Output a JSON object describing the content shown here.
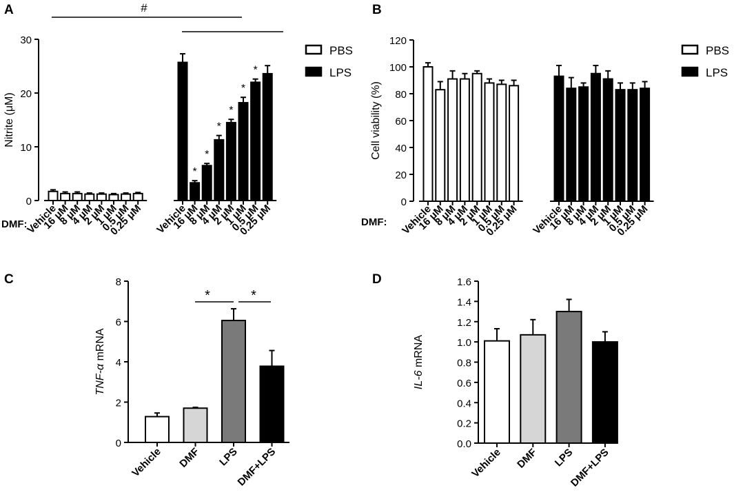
{
  "colors": {
    "pbs_fill": "#ffffff",
    "lps_fill": "#000000",
    "vehicle_fill": "#ffffff",
    "dmf_fill": "#d6d6d6",
    "lps_gray_fill": "#7a7a7a",
    "dmflps_fill": "#000000",
    "axis": "#000000"
  },
  "chart_data": [
    {
      "panel": "A",
      "type": "bar",
      "ylabel": "Nitrite (μM)",
      "ylim": [
        0,
        30
      ],
      "yticks": [
        "0",
        "10",
        "20",
        "30"
      ],
      "group_label": "DMF:",
      "categories": [
        "Vehicle",
        "16 μM",
        "8 μM",
        "4 μM",
        "2 μM",
        "1 μM",
        "0.5 μM",
        "0.25 μM"
      ],
      "legend": [
        "PBS",
        "LPS"
      ],
      "series": [
        {
          "name": "PBS",
          "values": [
            1.7,
            1.3,
            1.3,
            1.2,
            1.2,
            1.1,
            1.2,
            1.3
          ],
          "errors": [
            0.3,
            0.3,
            0.3,
            0.2,
            0.2,
            0.2,
            0.2,
            0.2
          ]
        },
        {
          "name": "LPS",
          "values": [
            25.7,
            3.3,
            6.5,
            11.3,
            14.5,
            18.2,
            22.0,
            23.6
          ],
          "errors": [
            1.6,
            0.4,
            0.4,
            0.8,
            0.6,
            1.0,
            0.6,
            1.5
          ]
        }
      ],
      "star_marks": [
        "*",
        "*",
        "*",
        "*",
        "*",
        "*"
      ],
      "brackets": [
        "#",
        ""
      ]
    },
    {
      "panel": "B",
      "type": "bar",
      "ylabel": "Cell viability (%)",
      "ylim": [
        0,
        120
      ],
      "yticks": [
        "0",
        "20",
        "40",
        "60",
        "80",
        "100",
        "120"
      ],
      "group_label": "DMF:",
      "categories": [
        "Vehicle",
        "16 μM",
        "8 μM",
        "4 μM",
        "2 μM",
        "1 μM",
        "0.5 μM",
        "0.25 μM"
      ],
      "legend": [
        "PBS",
        "LPS"
      ],
      "series": [
        {
          "name": "PBS",
          "values": [
            100,
            83,
            91,
            91,
            95,
            88,
            87,
            86
          ],
          "errors": [
            3,
            6,
            6,
            4,
            2,
            3,
            3,
            4
          ]
        },
        {
          "name": "LPS",
          "values": [
            93,
            84,
            85,
            95,
            91,
            83,
            83,
            84
          ],
          "errors": [
            8,
            8,
            3,
            6,
            6,
            5,
            5,
            5
          ]
        }
      ]
    },
    {
      "panel": "C",
      "type": "bar",
      "ylabel_italic": "TNF-α",
      "ylabel_suffix": " mRNA",
      "ylim": [
        0,
        8
      ],
      "yticks": [
        "0",
        "2",
        "4",
        "6",
        "8"
      ],
      "categories": [
        "Vehicle",
        "DMF",
        "LPS",
        "DMF+LPS"
      ],
      "values": [
        1.28,
        1.7,
        6.05,
        3.78
      ],
      "errors": [
        0.18,
        0.04,
        0.58,
        0.78
      ],
      "brackets": [
        "*",
        "*"
      ]
    },
    {
      "panel": "D",
      "type": "bar",
      "ylabel_italic": "IL-6",
      "ylabel_suffix": " mRNA",
      "ylim": [
        0,
        1.6
      ],
      "yticks": [
        "0.0",
        "0.2",
        "0.4",
        "0.6",
        "0.8",
        "1.0",
        "1.2",
        "1.4",
        "1.6"
      ],
      "categories": [
        "Vehicle",
        "DMF",
        "LPS",
        "DMF+LPS"
      ],
      "values": [
        1.01,
        1.07,
        1.3,
        1.0
      ],
      "errors": [
        0.12,
        0.15,
        0.12,
        0.1
      ]
    }
  ]
}
